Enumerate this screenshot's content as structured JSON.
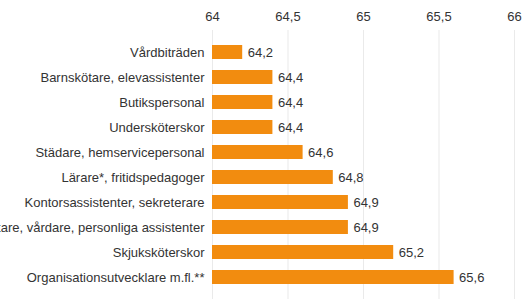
{
  "chart_data": {
    "type": "bar",
    "orientation": "horizontal",
    "categories": [
      "Vårdbiträden",
      "Barnskötare, elevassistenter",
      "Butikspersonal",
      "Undersköterskor",
      "Städare, hemservicepersonal",
      "Lärare*, fritidspedagoger",
      "Kontorsassistenter, sekreterare",
      "Skötare, vårdare, personliga assistenter",
      "Skjuksköterskor",
      "Organisationsutvecklare m.fl.**"
    ],
    "values": [
      64.2,
      64.4,
      64.4,
      64.4,
      64.6,
      64.8,
      64.9,
      64.9,
      65.2,
      65.6
    ],
    "value_labels": [
      "64,2",
      "64,4",
      "64,4",
      "64,4",
      "64,6",
      "64,8",
      "64,9",
      "64,9",
      "65,2",
      "65,6"
    ],
    "color": "#f28c0f",
    "xlim": [
      64,
      66
    ],
    "xticks": [
      64,
      {
        "value": 64.5,
        "label": "64,5"
      },
      65,
      {
        "value": 65.5,
        "label": "65,5"
      },
      66
    ],
    "grid": true,
    "data_labels": true
  }
}
